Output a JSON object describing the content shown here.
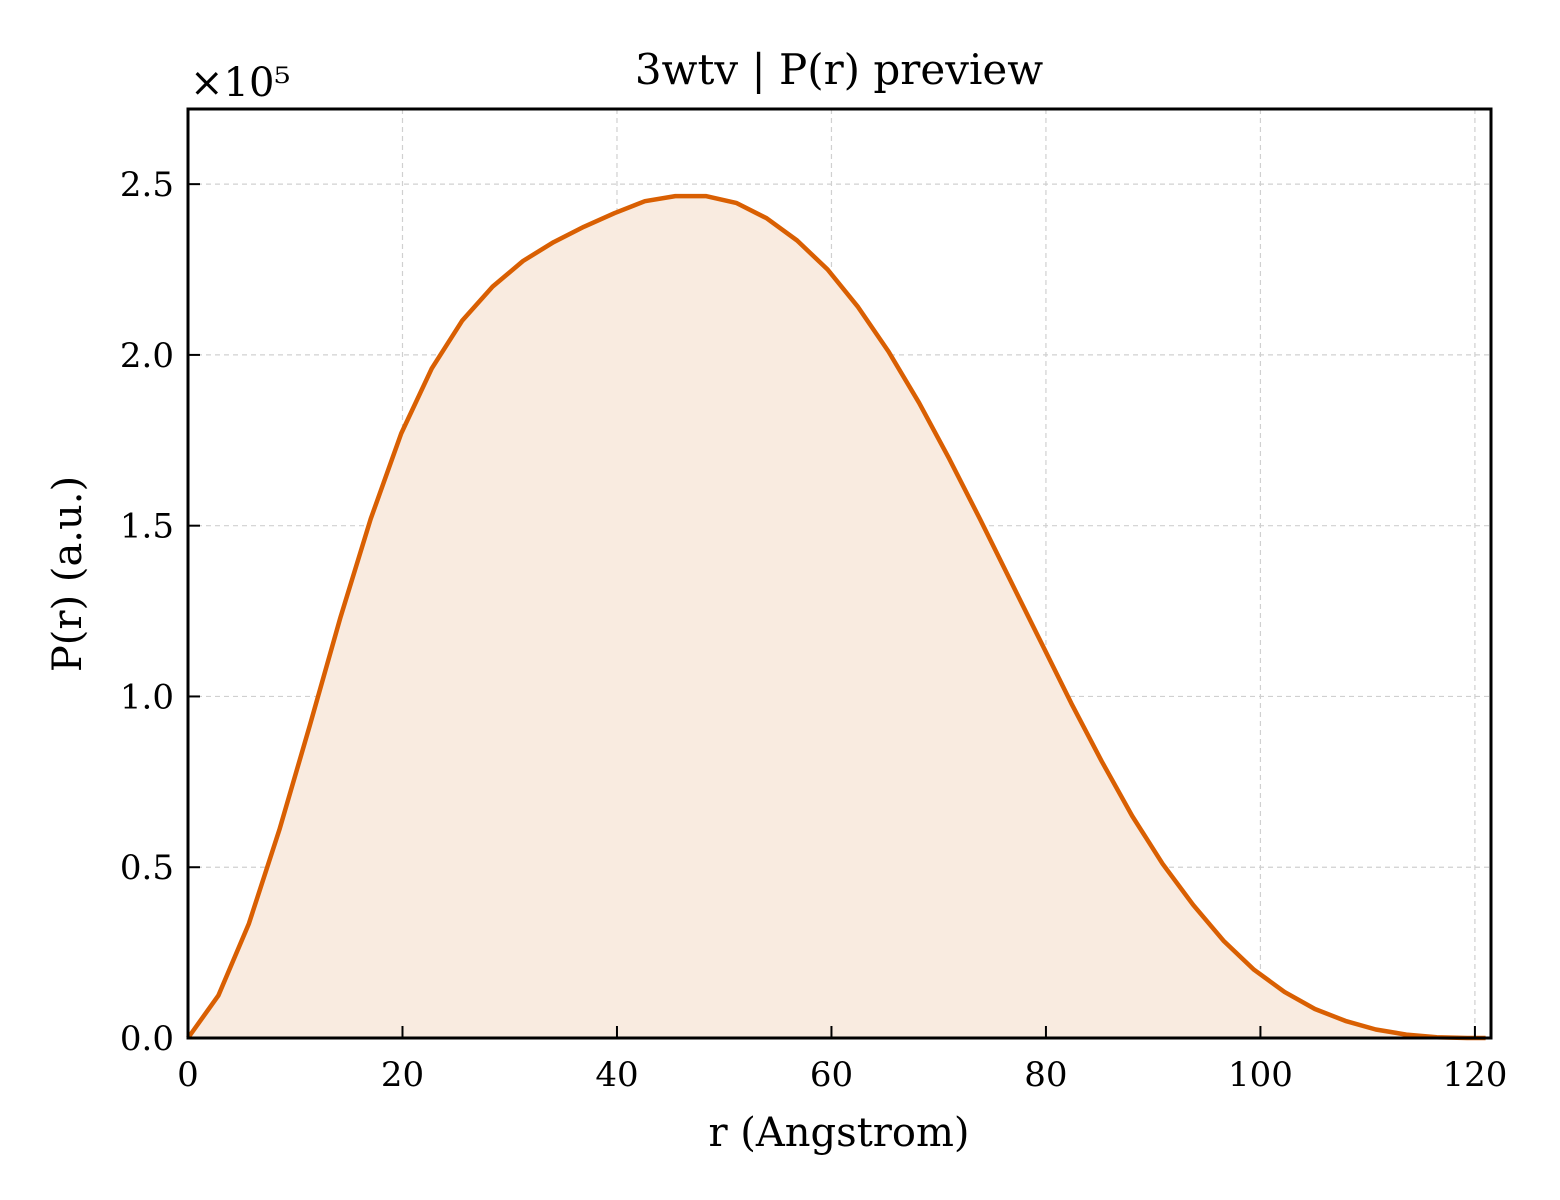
{
  "chart_data": {
    "type": "area",
    "title": "3wtv | P(r) preview",
    "xlabel": "r (Angstrom)",
    "ylabel": "P(r) (a.u.)",
    "y_multiplier_label": "×10⁵",
    "xlim": [
      0,
      121.5
    ],
    "ylim": [
      0,
      2.72
    ],
    "xticks": [
      0,
      20,
      40,
      60,
      80,
      100,
      120
    ],
    "xtick_labels": [
      "0",
      "20",
      "40",
      "60",
      "80",
      "100",
      "120"
    ],
    "yticks": [
      0.0,
      0.5,
      1.0,
      1.5,
      2.0,
      2.5
    ],
    "ytick_labels": [
      "0.0",
      "0.5",
      "1.0",
      "1.5",
      "2.0",
      "2.5"
    ],
    "grid": true,
    "line_color": "#d95f02",
    "fill_color": "#f9ebe0",
    "series": [
      {
        "x": [
          0,
          2.84,
          5.68,
          8.52,
          11.36,
          14.2,
          17.04,
          19.88,
          22.72,
          25.56,
          28.4,
          31.24,
          34.08,
          36.92,
          39.76,
          42.6,
          45.44,
          48.28,
          51.12,
          53.96,
          56.8,
          59.64,
          62.48,
          65.32,
          68.16,
          71.0,
          73.84,
          76.68,
          79.52,
          82.36,
          85.2,
          88.04,
          90.88,
          93.72,
          96.56,
          99.4,
          102.24,
          105.08,
          107.92,
          110.76,
          113.6,
          116.44,
          119.28,
          121.0
        ],
        "y": [
          0.0,
          0.125,
          0.335,
          0.61,
          0.915,
          1.23,
          1.52,
          1.77,
          1.96,
          2.1,
          2.2,
          2.275,
          2.33,
          2.375,
          2.415,
          2.45,
          2.465,
          2.465,
          2.445,
          2.4,
          2.335,
          2.25,
          2.14,
          2.01,
          1.86,
          1.695,
          1.52,
          1.34,
          1.16,
          0.98,
          0.81,
          0.65,
          0.51,
          0.39,
          0.285,
          0.2,
          0.135,
          0.085,
          0.05,
          0.025,
          0.01,
          0.002,
          0.0,
          0.0
        ]
      }
    ]
  }
}
